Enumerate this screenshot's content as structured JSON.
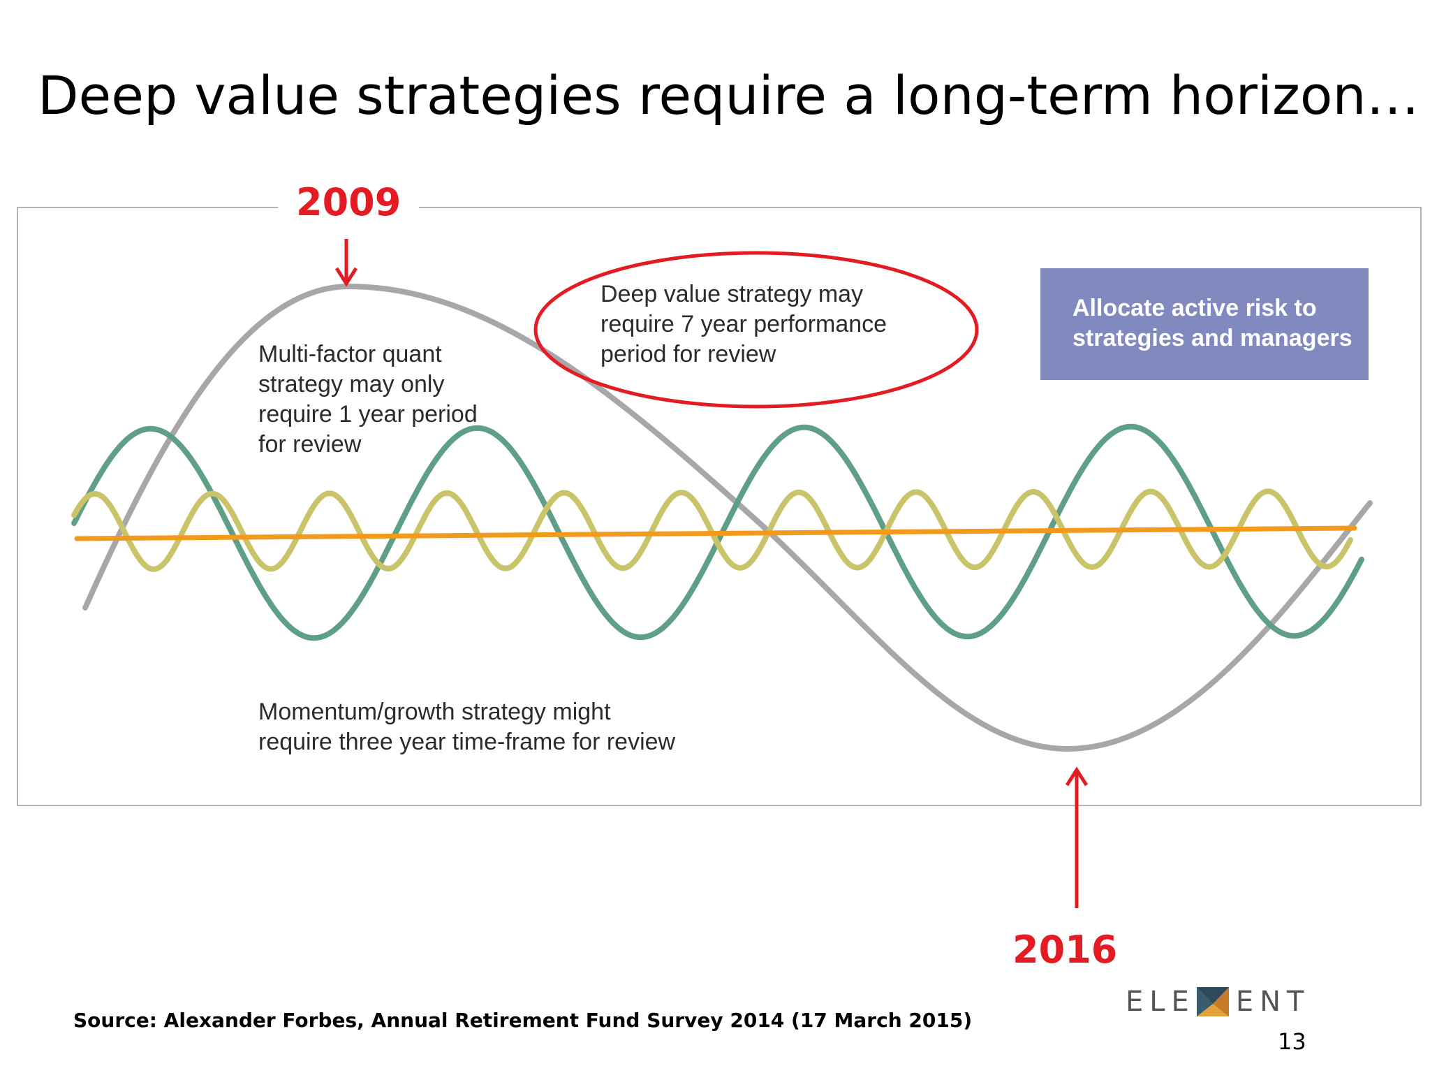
{
  "slide": {
    "title": "Deep value strategies require a long-term horizon…",
    "source": "Source: Alexander Forbes, Annual Retirement Fund Survey 2014 (17 March 2015)",
    "page_number": "13",
    "logo": {
      "left_text": "ELE",
      "right_text": "ENT"
    }
  },
  "diagram": {
    "markers": {
      "peak_year": "2009",
      "trough_year": "2016"
    },
    "annotations": {
      "quant": [
        "Multi-factor quant",
        "strategy may only",
        "require 1 year period",
        "for review"
      ],
      "deep_value": [
        "Deep value strategy may",
        "require 7 year performance",
        "period for review"
      ],
      "momentum": [
        "Momentum/growth strategy might",
        "require three year time-frame for review"
      ]
    },
    "callout": {
      "lines": [
        "Allocate active risk to",
        "strategies and managers"
      ]
    },
    "colors": {
      "deep_value_wave": "#a9a6aa",
      "momentum_wave": "#5e9f86",
      "quant_wave": "#c9c46a",
      "baseline": "#f39a1c",
      "highlight": "#e31b23",
      "callout_fill": "#8189bf"
    }
  }
}
